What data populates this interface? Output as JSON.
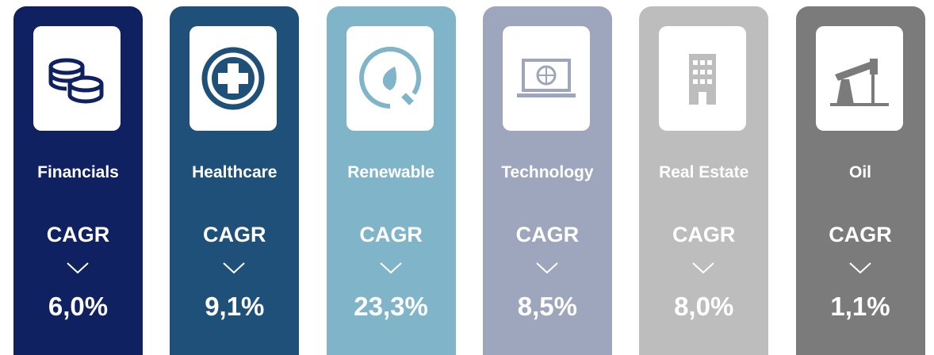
{
  "cards": [
    {
      "sector": "Financials",
      "metric": "CAGR",
      "value": "6,0%",
      "color": "#0f2161"
    },
    {
      "sector": "Healthcare",
      "metric": "CAGR",
      "value": "9,1%",
      "color": "#1f5079"
    },
    {
      "sector": "Renewable",
      "metric": "CAGR",
      "value": "23,3%",
      "color": "#80b4c9"
    },
    {
      "sector": "Technology",
      "metric": "CAGR",
      "value": "8,5%",
      "color": "#9ea6bd"
    },
    {
      "sector": "Real Estate",
      "metric": "CAGR",
      "value": "8,0%",
      "color": "#bdbdbd"
    },
    {
      "sector": "Oil",
      "metric": "CAGR",
      "value": "1,1%",
      "color": "#7b7b7b"
    }
  ]
}
